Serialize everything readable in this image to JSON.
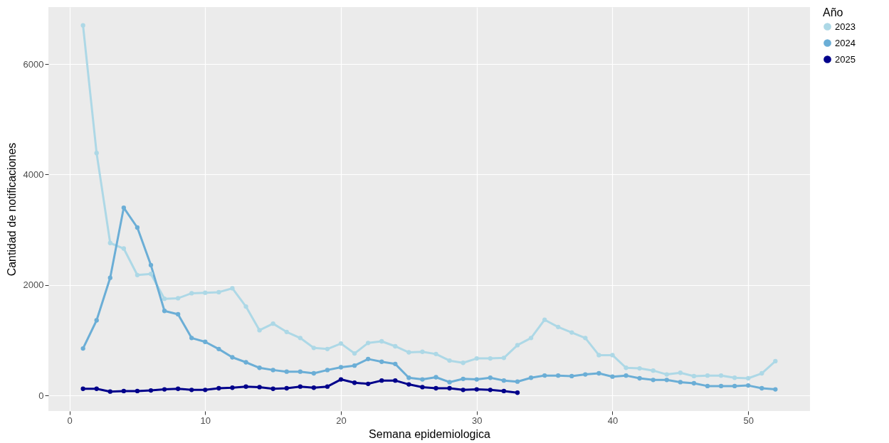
{
  "chart_data": {
    "type": "line",
    "xlabel": "Semana epidemiologica",
    "ylabel": "Cantidad de notificaciones",
    "legend_title": "Año",
    "x": [
      1,
      2,
      3,
      4,
      5,
      6,
      7,
      8,
      9,
      10,
      11,
      12,
      13,
      14,
      15,
      16,
      17,
      18,
      19,
      20,
      21,
      22,
      23,
      24,
      25,
      26,
      27,
      28,
      29,
      30,
      31,
      32,
      33,
      34,
      35,
      36,
      37,
      38,
      39,
      40,
      41,
      42,
      43,
      44,
      45,
      46,
      47,
      48,
      49,
      50,
      51,
      52
    ],
    "series": [
      {
        "name": "2023",
        "color": "#add8e6",
        "values": [
          6700,
          4390,
          2760,
          2660,
          2180,
          2200,
          1750,
          1760,
          1850,
          1860,
          1870,
          1940,
          1610,
          1180,
          1300,
          1150,
          1040,
          860,
          840,
          940,
          760,
          950,
          980,
          890,
          780,
          790,
          750,
          630,
          590,
          670,
          670,
          680,
          910,
          1040,
          1370,
          1240,
          1140,
          1040,
          730,
          730,
          500,
          490,
          450,
          380,
          410,
          350,
          360,
          360,
          320,
          310,
          400,
          620
        ]
      },
      {
        "name": "2024",
        "color": "#6baed6",
        "values": [
          850,
          1360,
          2130,
          3400,
          3040,
          2360,
          1530,
          1470,
          1040,
          970,
          840,
          690,
          600,
          500,
          460,
          430,
          430,
          400,
          460,
          510,
          540,
          660,
          610,
          570,
          320,
          290,
          330,
          240,
          300,
          290,
          320,
          270,
          250,
          320,
          360,
          360,
          350,
          380,
          400,
          340,
          360,
          310,
          280,
          280,
          240,
          220,
          170,
          170,
          170,
          180,
          130,
          110
        ]
      },
      {
        "name": "2025",
        "color": "#00008b",
        "values": [
          120,
          120,
          70,
          80,
          80,
          90,
          110,
          120,
          100,
          100,
          130,
          140,
          160,
          150,
          120,
          130,
          160,
          140,
          160,
          290,
          230,
          210,
          270,
          270,
          200,
          150,
          130,
          130,
          100,
          110,
          100,
          80,
          50,
          null,
          null,
          null,
          null,
          null,
          null,
          null,
          null,
          null,
          null,
          null,
          null,
          null,
          null,
          null,
          null,
          null,
          null,
          null
        ]
      }
    ],
    "xlim": [
      -1.55,
      54.55
    ],
    "xticks": [
      0,
      10,
      20,
      30,
      40,
      50
    ],
    "ylim": [
      -282,
      7032
    ],
    "yticks": [
      0,
      2000,
      4000,
      6000
    ],
    "grid": true,
    "legend": "right",
    "marker": "circle",
    "line_style": "solid"
  }
}
